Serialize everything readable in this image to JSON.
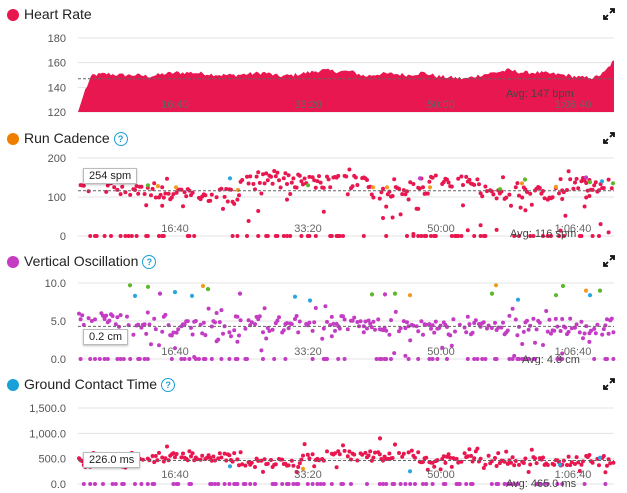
{
  "colors": {
    "heart_rate": "#e8174f",
    "cadence": "#e8174f",
    "cadence_icon": "#ef7d00",
    "oscillation": "#c33cc3",
    "gct": "#e8174f",
    "gct_icon": "#1a9fd8",
    "green": "#5db82a",
    "orange": "#f39a1e",
    "blue": "#2aa6e0",
    "purple": "#c33cc3"
  },
  "x_ticks": [
    "16:40",
    "33:20",
    "50:00",
    "1:06:40"
  ],
  "panels": {
    "heart_rate": {
      "title": "Heart Rate",
      "avg_label": "Avg: 147 bpm",
      "y_ticks": [
        "180",
        "160",
        "140",
        "120"
      ]
    },
    "cadence": {
      "title": "Run Cadence",
      "avg_label": "Avg: 116 spm",
      "badge": "254 spm",
      "y_ticks": [
        "200",
        "100",
        "0"
      ]
    },
    "oscillation": {
      "title": "Vertical Oscillation",
      "avg_label": "Avg: 4.3 cm",
      "badge": "0.2 cm",
      "y_ticks": [
        "10.0",
        "5.0",
        "0.0"
      ]
    },
    "gct": {
      "title": "Ground Contact Time",
      "avg_label": "Avg: 465.0 ms",
      "badge": "226.0 ms",
      "y_ticks": [
        "1,500.0",
        "1,000.0",
        "500.0",
        "0.0"
      ]
    }
  },
  "chart_data": [
    {
      "type": "area",
      "title": "Heart Rate",
      "xlabel": "",
      "ylabel": "",
      "x_unit": "seconds",
      "ylim": [
        120,
        180
      ],
      "xlim": [
        0,
        4480
      ],
      "average": 147,
      "series": [
        {
          "x": [
            0,
            60,
            120,
            240,
            360,
            480,
            600,
            720,
            840,
            960,
            1080,
            1200,
            1320,
            1440,
            1560,
            1680,
            1800,
            1920,
            2040,
            2160,
            2280,
            2400,
            2520,
            2640,
            2760,
            2880,
            3000,
            3120,
            3240,
            3360,
            3480,
            3600,
            3720,
            3840,
            3960,
            4080,
            4200,
            4320,
            4400,
            4480
          ],
          "values": [
            120,
            138,
            150,
            151,
            150,
            150,
            149,
            151,
            152,
            152,
            151,
            150,
            150,
            151,
            152,
            149,
            150,
            152,
            154,
            153,
            153,
            149,
            151,
            151,
            150,
            152,
            149,
            148,
            147,
            150,
            152,
            154,
            152,
            152,
            151,
            150,
            148,
            148,
            152,
            162
          ]
        }
      ]
    },
    {
      "type": "scatter",
      "title": "Run Cadence",
      "xlabel": "",
      "ylabel": "",
      "ylim": [
        0,
        200
      ],
      "average": 116,
      "x_ticks": [
        "16:40",
        "33:20",
        "50:00",
        "1:06:40"
      ]
    },
    {
      "type": "scatter",
      "title": "Vertical Oscillation",
      "xlabel": "",
      "ylabel": "",
      "ylim": [
        0,
        10
      ],
      "average": 4.3,
      "x_ticks": [
        "16:40",
        "33:20",
        "50:00",
        "1:06:40"
      ]
    },
    {
      "type": "scatter",
      "title": "Ground Contact Time",
      "xlabel": "",
      "ylabel": "",
      "ylim": [
        0,
        1500
      ],
      "average": 465.0,
      "x_ticks": [
        "16:40",
        "33:20",
        "50:00",
        "1:06:40"
      ]
    }
  ]
}
